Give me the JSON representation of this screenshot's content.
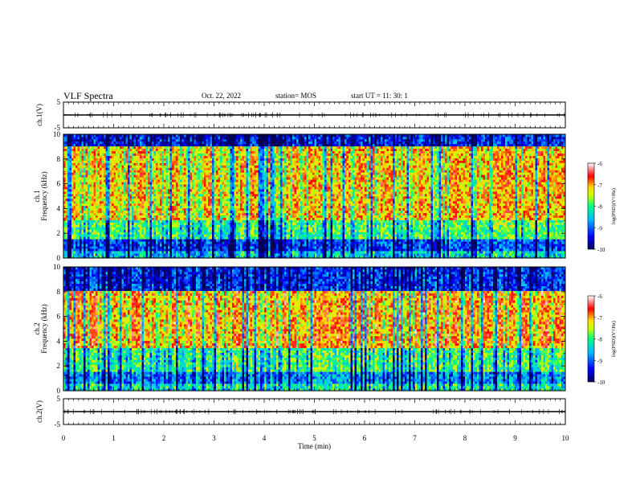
{
  "header": {
    "title": "VLF Spectra",
    "date": "Oct. 22, 2022",
    "station": "station= MOS",
    "start": "start  UT =   11: 30: 1"
  },
  "colors": {
    "colormap": [
      "#00005a",
      "#0000ff",
      "#00bfff",
      "#00ff80",
      "#c8ff00",
      "#ffd700",
      "#ff0000",
      "#ffffff"
    ],
    "background": "#ffffff",
    "axis": "#000000"
  },
  "chart_data": [
    {
      "type": "line",
      "name": "waveform-ch1",
      "ylabel": "ch.1(V)",
      "ylim": [
        -5,
        5
      ],
      "yticks": [
        "5",
        "-5"
      ],
      "xlim": [
        0,
        10
      ],
      "baseline_value": 0
    },
    {
      "type": "heatmap",
      "name": "spectrogram-ch1",
      "ylabel": [
        "ch.1",
        "Frequency (kHz)"
      ],
      "ylim": [
        0,
        10
      ],
      "yticks": [
        "0",
        "2",
        "4",
        "6",
        "8",
        "10"
      ],
      "xlim": [
        0,
        10
      ],
      "colorbar": {
        "label": "log(PSD)(V²/Hz)",
        "range": [
          -10,
          -6
        ],
        "ticks": [
          "-6",
          "-7",
          "-8",
          "-9",
          "-10"
        ]
      },
      "band_profile_khz": [
        {
          "fmax": 0.5,
          "level": -8.5
        },
        {
          "fmax": 1.5,
          "level": -9.2
        },
        {
          "fmax": 3.0,
          "level": -8.0
        },
        {
          "fmax": 9.0,
          "level": -7.2
        },
        {
          "fmax": 10.0,
          "level": -9.4
        }
      ]
    },
    {
      "type": "heatmap",
      "name": "spectrogram-ch2",
      "ylabel": [
        "ch.2",
        "Frequency (kHz)"
      ],
      "ylim": [
        0,
        10
      ],
      "yticks": [
        "0",
        "2",
        "4",
        "6",
        "8",
        "10"
      ],
      "xlim": [
        0,
        10
      ],
      "colorbar": {
        "label": "log(PSD)(V²/Hz)",
        "range": [
          -10,
          -6
        ],
        "ticks": [
          "-6",
          "-7",
          "-8",
          "-9",
          "-10"
        ]
      },
      "band_profile_khz": [
        {
          "fmax": 0.5,
          "level": -8.2
        },
        {
          "fmax": 1.5,
          "level": -8.8
        },
        {
          "fmax": 3.5,
          "level": -8.0
        },
        {
          "fmax": 8.0,
          "level": -7.0
        },
        {
          "fmax": 10.0,
          "level": -9.3
        }
      ]
    },
    {
      "type": "line",
      "name": "waveform-ch2",
      "ylabel": "ch.2(V)",
      "ylim": [
        -5,
        5
      ],
      "yticks": [
        "5",
        "-5"
      ],
      "xlim": [
        0,
        10
      ],
      "baseline_value": 0
    }
  ],
  "x_axis": {
    "label": "Time (min)",
    "ticks": [
      "0",
      "1",
      "2",
      "3",
      "4",
      "5",
      "6",
      "7",
      "8",
      "9",
      "10"
    ],
    "range": [
      0,
      10
    ]
  }
}
